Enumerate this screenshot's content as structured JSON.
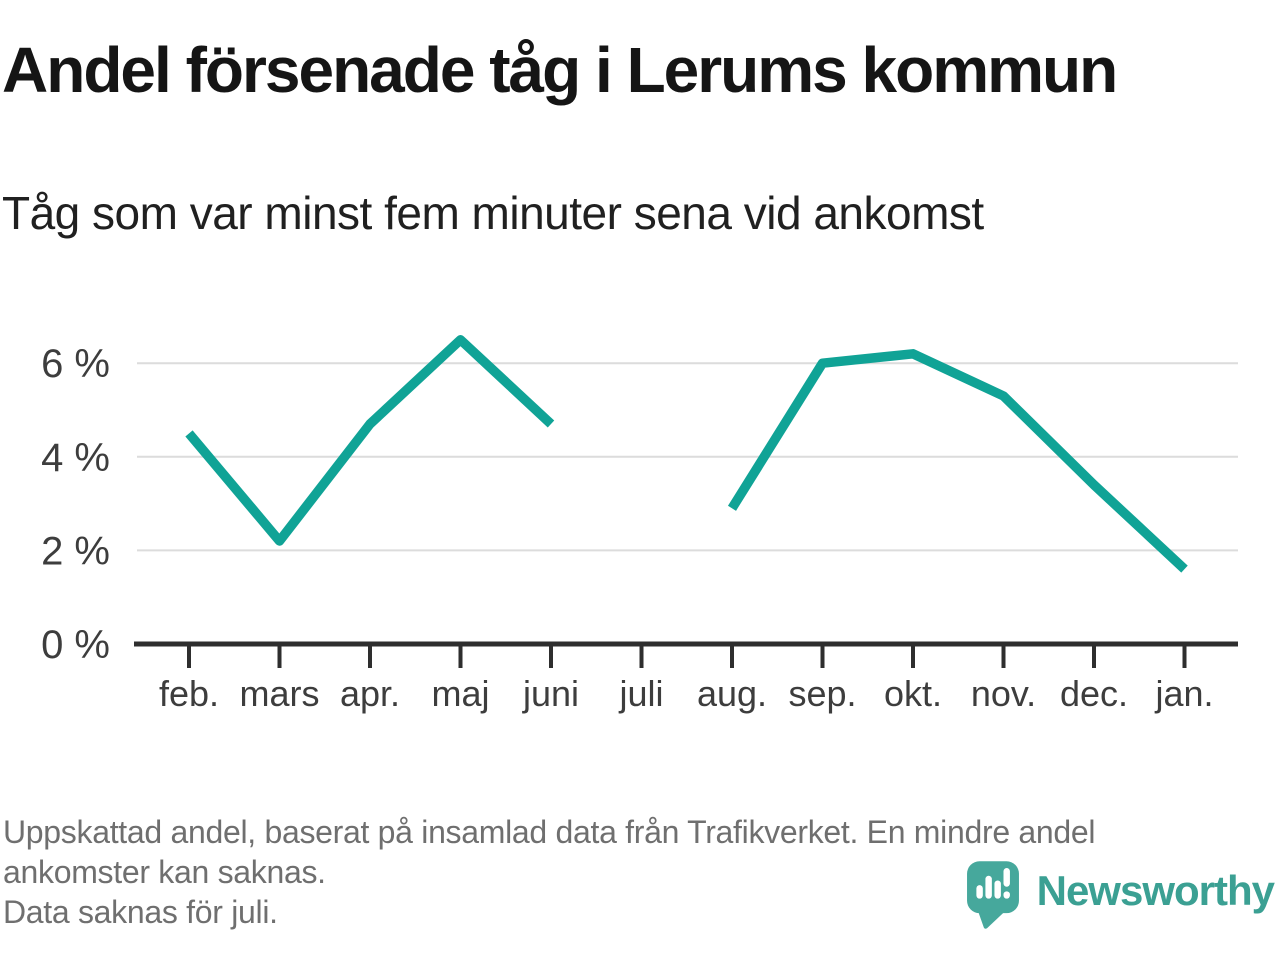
{
  "header": {
    "title": "Andel försenade tåg i Lerums kommun",
    "subtitle": "Tåg som var minst fem minuter sena vid ankomst"
  },
  "footer": {
    "lines": [
      "Uppskattad andel, baserat på insamlad data från Trafikverket. En mindre andel",
      "ankomster kan saknas.",
      "Data saknas för juli."
    ]
  },
  "logo": {
    "name": "Newsworthy",
    "icon": "newsworthy-speech-bubble-bar-chart-icon"
  },
  "colors": {
    "accent_teal_line": "#10a396",
    "logo_bubble": "#46a89c",
    "logo_text": "#3ba093",
    "grid": "#dcdcdc",
    "axis": "#2e2e2e",
    "tick_label": "#3d3d3d",
    "title_text": "#151515",
    "footer_text": "#6f6f6f"
  },
  "chart_data": {
    "type": "line",
    "title": "Andel försenade tåg i Lerums kommun",
    "xlabel": "",
    "ylabel": "",
    "categories": [
      "feb.",
      "mars",
      "apr.",
      "maj",
      "juni",
      "juli",
      "aug.",
      "sep.",
      "okt.",
      "nov.",
      "dec.",
      "jan."
    ],
    "series": [
      {
        "name": "Andel försenade tåg (minst fem minuter sena vid ankomst)",
        "values": [
          4.5,
          2.2,
          4.7,
          6.5,
          4.7,
          null,
          2.9,
          6.0,
          6.2,
          5.3,
          3.4,
          1.6
        ]
      }
    ],
    "missing_data_note": "Data saknas för juli.",
    "y_ticks": [
      {
        "value": 0,
        "label": "0 %"
      },
      {
        "value": 2,
        "label": "2 %"
      },
      {
        "value": 4,
        "label": "4 %"
      },
      {
        "value": 6,
        "label": "6 %"
      }
    ],
    "ylim": [
      0,
      7
    ],
    "grid": true,
    "legend": "none",
    "line_color": "#10a396"
  }
}
